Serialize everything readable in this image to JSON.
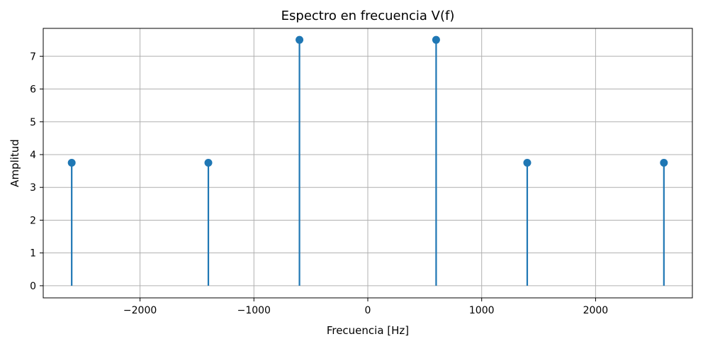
{
  "chart_data": {
    "type": "stem",
    "title": "Espectro en frecuencia V(f)",
    "xlabel": "Frecuencia [Hz]",
    "ylabel": "Amplitud",
    "xlim": [
      -2850,
      2850
    ],
    "ylim": [
      -0.37,
      7.85
    ],
    "xticks": [
      -2000,
      -1000,
      0,
      1000,
      2000
    ],
    "xtick_labels": [
      "−2000",
      "−1000",
      "0",
      "1000",
      "2000"
    ],
    "yticks": [
      0,
      1,
      2,
      3,
      4,
      5,
      6,
      7
    ],
    "ytick_labels": [
      "0",
      "1",
      "2",
      "3",
      "4",
      "5",
      "6",
      "7"
    ],
    "grid": true,
    "color": "#1f77b4",
    "points": [
      {
        "x": -2600,
        "y": 3.75
      },
      {
        "x": -1400,
        "y": 3.75
      },
      {
        "x": -600,
        "y": 7.5
      },
      {
        "x": 600,
        "y": 7.5
      },
      {
        "x": 1400,
        "y": 3.75
      },
      {
        "x": 2600,
        "y": 3.75
      }
    ]
  }
}
